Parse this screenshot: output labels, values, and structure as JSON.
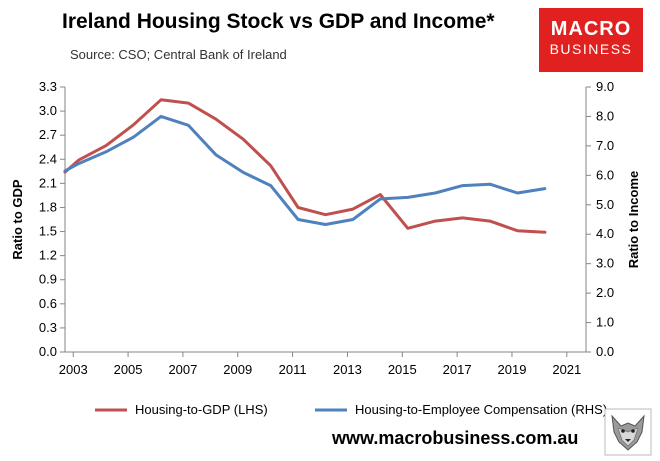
{
  "header": {
    "title": "Ireland Housing Stock vs GDP and Income*",
    "subtitle": "Source: CSO; Central Bank of Ireland"
  },
  "logo": {
    "line1": "MACRO",
    "line2": "BUSINESS",
    "color": "#e0211f"
  },
  "footer": {
    "url": "www.macrobusiness.com.au",
    "wolf_icon": "wolf-head-icon"
  },
  "chart_data": {
    "type": "line",
    "title": "Ireland Housing Stock vs GDP and Income*",
    "subtitle": "Source: CSO; Central Bank of Ireland",
    "x_ticks": [
      "2003",
      "2005",
      "2007",
      "2009",
      "2011",
      "2013",
      "2015",
      "2017",
      "2019",
      "2021"
    ],
    "xlim": [
      2002.7,
      2021.7
    ],
    "y_left": {
      "label": "Ratio to GDP",
      "lim": [
        0.0,
        3.3
      ],
      "ticks": [
        "0.0",
        "0.3",
        "0.6",
        "0.9",
        "1.2",
        "1.5",
        "1.8",
        "2.1",
        "2.4",
        "2.7",
        "3.0",
        "3.3"
      ]
    },
    "y_right": {
      "label": "Ratio to Income",
      "lim": [
        0.0,
        9.0
      ],
      "ticks": [
        "0.0",
        "1.0",
        "2.0",
        "3.0",
        "4.0",
        "5.0",
        "6.0",
        "7.0",
        "8.0",
        "9.0"
      ]
    },
    "grid": false,
    "legend_position": "bottom",
    "series": [
      {
        "name": "Housing-to-GDP (LHS)",
        "axis": "left",
        "color": "#c0504d",
        "x": [
          2002.7,
          2003.2,
          2004.2,
          2005.2,
          2006.2,
          2007.2,
          2008.2,
          2009.2,
          2010.2,
          2011.2,
          2012.2,
          2013.2,
          2014.2,
          2015.2,
          2016.2,
          2017.2,
          2018.2,
          2019.2,
          2020.2
        ],
        "y": [
          2.24,
          2.39,
          2.57,
          2.83,
          3.14,
          3.1,
          2.9,
          2.65,
          2.32,
          1.8,
          1.71,
          1.78,
          1.96,
          1.54,
          1.63,
          1.67,
          1.63,
          1.51,
          1.49
        ]
      },
      {
        "name": "Housing-to-Employee Compensation (RHS)",
        "axis": "right",
        "color": "#4f81bd",
        "x": [
          2002.7,
          2003.2,
          2004.2,
          2005.2,
          2006.2,
          2007.2,
          2008.2,
          2009.2,
          2010.2,
          2011.2,
          2012.2,
          2013.2,
          2014.2,
          2015.2,
          2016.2,
          2017.2,
          2018.2,
          2019.2,
          2020.2
        ],
        "y": [
          6.15,
          6.4,
          6.8,
          7.3,
          8.0,
          7.7,
          6.7,
          6.1,
          5.65,
          4.5,
          4.33,
          4.5,
          5.2,
          5.25,
          5.4,
          5.65,
          5.7,
          5.4,
          5.55
        ]
      }
    ]
  }
}
